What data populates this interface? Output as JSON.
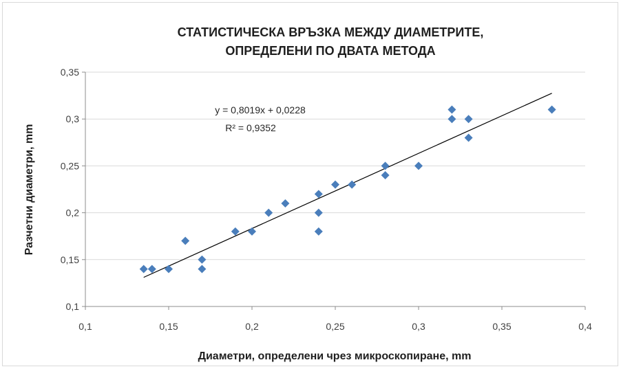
{
  "chart_data": {
    "type": "scatter",
    "title_lines": [
      "СТАТИСТИЧЕСКА ВРЪЗКА МЕЖДУ ДИАМЕТРИТЕ,",
      "ОПРЕДЕЛЕНИ ПО ДВАТА МЕТОДА"
    ],
    "xlabel": "Диаметри, определени чрез микроскопиране, mm",
    "ylabel": "Разчетни диаметри, mm",
    "xlim": [
      0.1,
      0.4
    ],
    "ylim": [
      0.1,
      0.35
    ],
    "x_ticks": [
      "0,1",
      "0,15",
      "0,2",
      "0,25",
      "0,3",
      "0,35",
      "0,4"
    ],
    "y_ticks": [
      "0,1",
      "0,15",
      "0,2",
      "0,25",
      "0,3",
      "0,35"
    ],
    "grid": true,
    "marker": "diamond",
    "marker_color": "#4a7ebb",
    "trendline_color": "#000000",
    "trendline": {
      "slope": 0.8019,
      "intercept": 0.0228,
      "x_range": [
        0.135,
        0.38
      ]
    },
    "equation_text": "y = 0,8019x + 0,0228",
    "r2_text": "R² = 0,9352",
    "points": [
      {
        "x": 0.135,
        "y": 0.14
      },
      {
        "x": 0.14,
        "y": 0.14
      },
      {
        "x": 0.15,
        "y": 0.14
      },
      {
        "x": 0.16,
        "y": 0.17
      },
      {
        "x": 0.17,
        "y": 0.15
      },
      {
        "x": 0.17,
        "y": 0.14
      },
      {
        "x": 0.19,
        "y": 0.18
      },
      {
        "x": 0.2,
        "y": 0.18
      },
      {
        "x": 0.21,
        "y": 0.2
      },
      {
        "x": 0.22,
        "y": 0.21
      },
      {
        "x": 0.24,
        "y": 0.22
      },
      {
        "x": 0.24,
        "y": 0.2
      },
      {
        "x": 0.24,
        "y": 0.18
      },
      {
        "x": 0.25,
        "y": 0.23
      },
      {
        "x": 0.26,
        "y": 0.23
      },
      {
        "x": 0.28,
        "y": 0.25
      },
      {
        "x": 0.28,
        "y": 0.24
      },
      {
        "x": 0.3,
        "y": 0.25
      },
      {
        "x": 0.32,
        "y": 0.31
      },
      {
        "x": 0.32,
        "y": 0.3
      },
      {
        "x": 0.33,
        "y": 0.3
      },
      {
        "x": 0.33,
        "y": 0.28
      },
      {
        "x": 0.38,
        "y": 0.31
      }
    ]
  }
}
